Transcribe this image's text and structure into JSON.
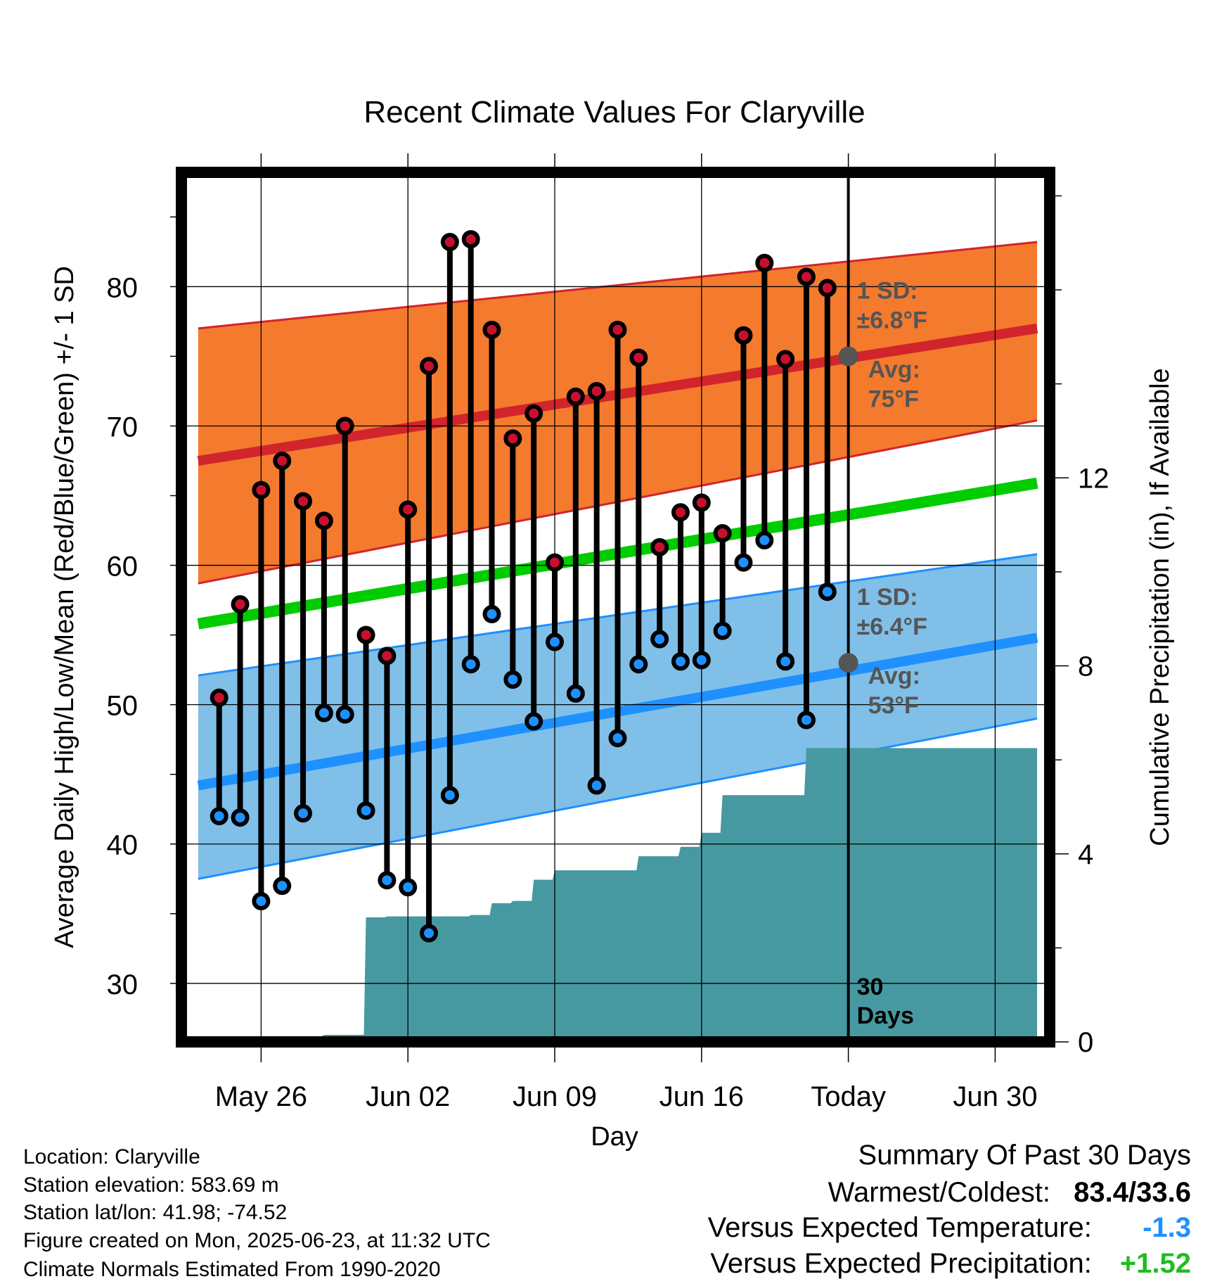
{
  "chart_data": {
    "type": "line",
    "title": "Recent Climate Values For Claryville",
    "xlabel": "Day",
    "ylabel": "Average Daily High/Low/Mean (Red/Blue/Green) +/- 1 SD",
    "y2label": "Cumulative Precipitation (in), If Available",
    "ylim": [
      25.8,
      88.2
    ],
    "y2lim": [
      0,
      18.5
    ],
    "xlim": [
      -1.6,
      39.4
    ],
    "yticks": [
      30,
      40,
      50,
      60,
      70,
      80
    ],
    "y2ticks": [
      0,
      4,
      8,
      12
    ],
    "x_tick_labels": [
      {
        "day": 2,
        "label": "May 26"
      },
      {
        "day": 9,
        "label": "Jun 02"
      },
      {
        "day": 16,
        "label": "Jun 09"
      },
      {
        "day": 23,
        "label": "Jun 16"
      },
      {
        "day": 30,
        "label": "Today"
      },
      {
        "day": 37,
        "label": "Jun 30"
      }
    ],
    "today_day": 30,
    "days_label": [
      "30",
      "Days"
    ],
    "normals": {
      "days": [
        -1,
        39
      ],
      "high_avg": [
        67.5,
        77.0
      ],
      "high_upper": [
        77.0,
        83.2
      ],
      "high_lower": [
        58.7,
        70.4
      ],
      "mean": [
        55.8,
        65.9
      ],
      "low_avg": [
        44.2,
        54.8
      ],
      "low_upper": [
        52.1,
        60.8
      ],
      "low_lower": [
        37.5,
        49.0
      ]
    },
    "high_annotation": {
      "sd_label": "1 SD:",
      "sd_value": "±6.8°F",
      "avg_label": "Avg:",
      "avg_value": "75°F",
      "avg": 75
    },
    "low_annotation": {
      "sd_label": "1 SD:",
      "sd_value": "±6.4°F",
      "avg_label": "Avg:",
      "avg_value": "53°F",
      "avg": 53
    },
    "observations": {
      "days": [
        0,
        1,
        2,
        3,
        4,
        5,
        6,
        7,
        8,
        9,
        10,
        11,
        12,
        13,
        14,
        15,
        16,
        17,
        18,
        19,
        20,
        21,
        22,
        23,
        24,
        25,
        26,
        27,
        28,
        29
      ],
      "highs": [
        50.5,
        57.2,
        65.4,
        67.5,
        64.6,
        63.2,
        70.0,
        55.0,
        53.5,
        64.0,
        74.3,
        83.2,
        83.4,
        76.9,
        69.1,
        70.9,
        60.2,
        72.1,
        72.5,
        76.9,
        74.9,
        61.3,
        63.8,
        64.5,
        62.3,
        76.5,
        81.7,
        74.8,
        80.7,
        79.9
      ],
      "lows": [
        42.0,
        41.9,
        35.9,
        37.0,
        42.2,
        49.4,
        49.3,
        42.4,
        37.4,
        36.9,
        33.6,
        43.5,
        52.9,
        56.5,
        51.8,
        48.8,
        54.5,
        50.8,
        44.2,
        47.6,
        52.9,
        54.7,
        53.1,
        53.2,
        55.3,
        60.2,
        61.8,
        53.1,
        48.9,
        58.1
      ]
    },
    "precipitation": {
      "days": [
        -1,
        0,
        1,
        2,
        3,
        4,
        5,
        6,
        7,
        8,
        9,
        10,
        11,
        12,
        13,
        14,
        15,
        16,
        17,
        18,
        19,
        20,
        21,
        22,
        23,
        24,
        25,
        26,
        27,
        28,
        29,
        30,
        39
      ],
      "values": [
        0.0,
        0.12,
        0.12,
        0.12,
        0.12,
        0.12,
        0.15,
        0.15,
        2.65,
        2.67,
        2.67,
        2.67,
        2.67,
        2.7,
        2.95,
        3.0,
        3.45,
        3.65,
        3.65,
        3.65,
        3.65,
        3.95,
        3.95,
        4.15,
        4.45,
        5.25,
        5.25,
        5.25,
        5.25,
        6.25,
        6.25,
        6.25,
        6.25
      ]
    },
    "colors": {
      "high_band": "#f47a2e",
      "high_line": "#d1242b",
      "mean_line": "#00cc00",
      "low_band": "#80bfe8",
      "low_line": "#1e90ff",
      "precip": "#4799a1",
      "high_marker": "#c8102e",
      "low_marker": "#1e90ff",
      "annotation": "#555555"
    },
    "grid": true
  },
  "footer": {
    "location": "Location: Claryville",
    "elevation": "Station elevation: 583.69 m",
    "latlon": "Station lat/lon: 41.98; -74.52",
    "created": "Figure created on Mon, 2025-06-23, at 11:32 UTC",
    "normals": "Climate Normals Estimated From 1990-2020"
  },
  "summary": {
    "heading": "Summary Of Past 30 Days",
    "warm_cold_label": "Warmest/Coldest:",
    "warm_cold_value": "83.4/33.6",
    "temp_label": "Versus Expected Temperature:",
    "temp_value": "-1.3",
    "temp_color": "#1e90ff",
    "precip_label": "Versus Expected Precipitation:",
    "precip_value": "+1.52",
    "precip_color": "#22bb22"
  }
}
